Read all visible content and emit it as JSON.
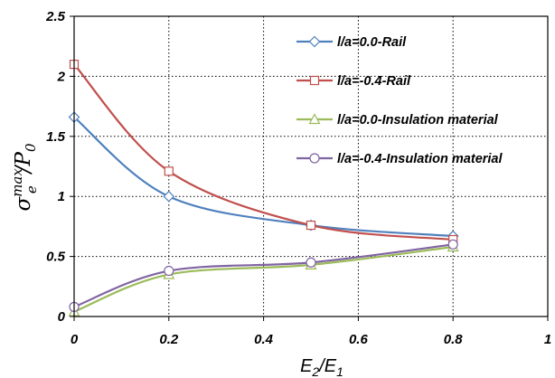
{
  "chart_data": {
    "type": "line",
    "xlabel": {
      "base": "E",
      "sub1": "2",
      "slash": "/E",
      "sub2": "1"
    },
    "ylabel": {
      "sigma": "σ",
      "sup": "max",
      "sub": "e",
      "div": "/P",
      "sub2": "0"
    },
    "xlim": [
      0,
      1
    ],
    "ylim": [
      0,
      2.5
    ],
    "x_ticks": [
      "0",
      "0.2",
      "0.4",
      "0.6",
      "0.8",
      "1"
    ],
    "y_ticks": [
      "0",
      "0.5",
      "1",
      "1.5",
      "2",
      "2.5"
    ],
    "grid": true,
    "legend_position": "top-right",
    "series": [
      {
        "name": "l/a=0.0-Rail",
        "color": "#4f81bd",
        "marker": "diamond",
        "x": [
          0,
          0.2,
          0.5,
          0.8
        ],
        "y": [
          1.66,
          1.0,
          0.76,
          0.67
        ]
      },
      {
        "name": "l/a=-0.4-Rail",
        "color": "#c0504d",
        "marker": "square",
        "x": [
          0,
          0.2,
          0.5,
          0.8
        ],
        "y": [
          2.1,
          1.21,
          0.76,
          0.64
        ]
      },
      {
        "name": "l/a=0.0-Insulation material",
        "color": "#9bbb59",
        "marker": "triangle",
        "x": [
          0,
          0.2,
          0.5,
          0.8
        ],
        "y": [
          0.04,
          0.35,
          0.43,
          0.58
        ]
      },
      {
        "name": "l/a=-0.4-Insulation material",
        "color": "#8064a2",
        "marker": "circle",
        "x": [
          0,
          0.2,
          0.5,
          0.8
        ],
        "y": [
          0.08,
          0.38,
          0.45,
          0.6
        ]
      }
    ]
  }
}
